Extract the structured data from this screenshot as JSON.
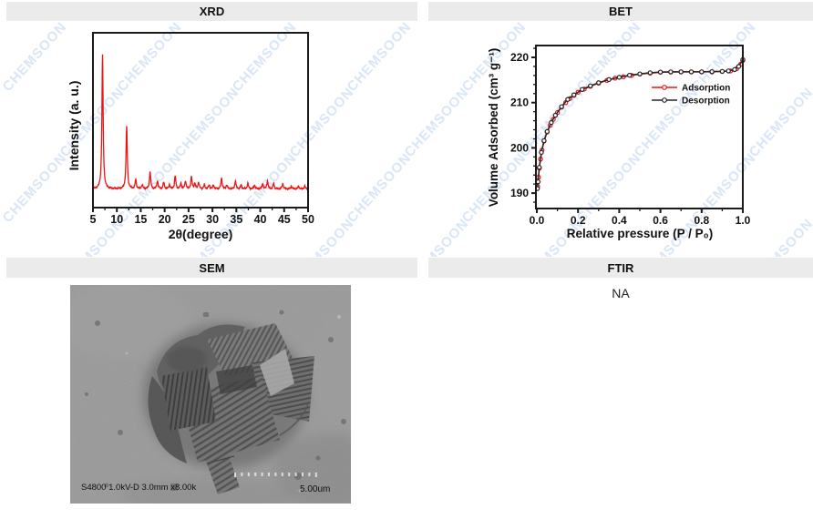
{
  "panels": {
    "xrd": {
      "header": "XRD"
    },
    "bet": {
      "header": "BET"
    },
    "sem": {
      "header": "SEM",
      "caption_left": "S4800 1.0kV-D 3.0mm x8.00k",
      "scale_label": "5.00um"
    },
    "ftir": {
      "header": "FTIR",
      "value": "NA"
    }
  },
  "watermark": {
    "text": "CHEMSOON",
    "color": "#d9e6f7",
    "rotation_deg": -48,
    "rows": 4,
    "cols": 7,
    "x_start": -10,
    "y_start": 30,
    "x_step": 126,
    "y_step": 72,
    "row_x_offset": 63
  },
  "chart_data": [
    {
      "id": "xrd",
      "type": "line",
      "title": "XRD",
      "xlabel": "2θ(degree)",
      "ylabel": "Intensity (a. u.)",
      "xlim": [
        5,
        50
      ],
      "x_ticks": [
        5,
        10,
        15,
        20,
        25,
        30,
        35,
        40,
        45,
        50
      ],
      "x_minor_step": 2.5,
      "y_ticks": [],
      "grid": false,
      "line_color": "#ee1414",
      "peak_width": 0.15,
      "peaks": [
        [
          7.0,
          100
        ],
        [
          12.05,
          47
        ],
        [
          13.95,
          7
        ],
        [
          15.3,
          3
        ],
        [
          16.95,
          13
        ],
        [
          18.5,
          6
        ],
        [
          19.8,
          5
        ],
        [
          21.0,
          3
        ],
        [
          22.2,
          10
        ],
        [
          23.4,
          4
        ],
        [
          24.35,
          6
        ],
        [
          25.6,
          9
        ],
        [
          26.3,
          4
        ],
        [
          27.1,
          5
        ],
        [
          28.3,
          3
        ],
        [
          29.3,
          3
        ],
        [
          30.2,
          3
        ],
        [
          31.9,
          8
        ],
        [
          33.0,
          3
        ],
        [
          34.8,
          6
        ],
        [
          36.0,
          3
        ],
        [
          37.4,
          4
        ],
        [
          38.8,
          3
        ],
        [
          40.5,
          4
        ],
        [
          41.5,
          6
        ],
        [
          42.8,
          4
        ],
        [
          44.7,
          4
        ],
        [
          46.5,
          2
        ],
        [
          48.0,
          2
        ],
        [
          49.3,
          2
        ]
      ]
    },
    {
      "id": "bet",
      "type": "line",
      "title": "BET",
      "xlabel": "Relative pressure (P / P₀)",
      "ylabel": "Volume Adsorbed (cm³ g⁻¹)",
      "xlim": [
        0,
        1.0
      ],
      "ylim": [
        186.5,
        222.5
      ],
      "x_tick_labels": [
        "0.0",
        "0.2",
        "0.4",
        "0.6",
        "0.8",
        "1.0"
      ],
      "x_minor_step": 0.1,
      "y_ticks": [
        190,
        200,
        210,
        220
      ],
      "y_minor_step": 2,
      "grid": false,
      "legend_position": "middle-right",
      "series": [
        {
          "name": "Adsorption",
          "color": "#ee1414",
          "points": [
            [
              0.004,
              191.5
            ],
            [
              0.008,
              193.5
            ],
            [
              0.012,
              195.5
            ],
            [
              0.018,
              197.5
            ],
            [
              0.025,
              199.5
            ],
            [
              0.035,
              201.5
            ],
            [
              0.05,
              203.5
            ],
            [
              0.065,
              205.0
            ],
            [
              0.08,
              206.3
            ],
            [
              0.1,
              207.8
            ],
            [
              0.12,
              209.0
            ],
            [
              0.14,
              210.0
            ],
            [
              0.16,
              210.9
            ],
            [
              0.18,
              211.6
            ],
            [
              0.2,
              212.3
            ],
            [
              0.23,
              213.0
            ],
            [
              0.26,
              213.6
            ],
            [
              0.3,
              214.3
            ],
            [
              0.34,
              214.9
            ],
            [
              0.38,
              215.4
            ],
            [
              0.42,
              215.7
            ],
            [
              0.46,
              216.0
            ],
            [
              0.5,
              216.3
            ],
            [
              0.55,
              216.5
            ],
            [
              0.6,
              216.7
            ],
            [
              0.65,
              216.75
            ],
            [
              0.7,
              216.8
            ],
            [
              0.75,
              216.8
            ],
            [
              0.8,
              216.8
            ],
            [
              0.85,
              216.8
            ],
            [
              0.9,
              216.9
            ],
            [
              0.94,
              217.0
            ],
            [
              0.97,
              217.5
            ],
            [
              0.99,
              218.5
            ],
            [
              1.0,
              219.3
            ]
          ]
        },
        {
          "name": "Desorption",
          "color": "#262626",
          "points": [
            [
              0.003,
              191.0
            ],
            [
              0.006,
              192.5
            ],
            [
              0.012,
              195.7
            ],
            [
              0.022,
              199.0
            ],
            [
              0.035,
              201.6
            ],
            [
              0.05,
              203.6
            ],
            [
              0.07,
              205.6
            ],
            [
              0.09,
              207.2
            ],
            [
              0.12,
              209.1
            ],
            [
              0.15,
              210.7
            ],
            [
              0.18,
              211.7
            ],
            [
              0.22,
              212.9
            ],
            [
              0.26,
              213.7
            ],
            [
              0.3,
              214.4
            ],
            [
              0.35,
              215.1
            ],
            [
              0.4,
              215.6
            ],
            [
              0.45,
              216.05
            ],
            [
              0.5,
              216.35
            ],
            [
              0.55,
              216.6
            ],
            [
              0.6,
              216.75
            ],
            [
              0.65,
              216.8
            ],
            [
              0.7,
              216.8
            ],
            [
              0.75,
              216.8
            ],
            [
              0.8,
              216.8
            ],
            [
              0.85,
              216.85
            ],
            [
              0.9,
              216.9
            ],
            [
              0.93,
              217.0
            ],
            [
              0.96,
              217.3
            ],
            [
              0.98,
              218.0
            ],
            [
              1.0,
              219.5
            ]
          ]
        }
      ]
    }
  ]
}
